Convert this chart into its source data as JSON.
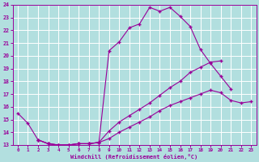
{
  "xlabel": "Windchill (Refroidissement éolien,°C)",
  "bg_color": "#b2dfdf",
  "line_color": "#990099",
  "grid_color": "#ffffff",
  "xlim": [
    -0.5,
    23.5
  ],
  "ylim": [
    13,
    24
  ],
  "xticks": [
    0,
    1,
    2,
    3,
    4,
    5,
    6,
    7,
    8,
    9,
    10,
    11,
    12,
    13,
    14,
    15,
    16,
    17,
    18,
    19,
    20,
    21,
    22,
    23
  ],
  "yticks": [
    13,
    14,
    15,
    16,
    17,
    18,
    19,
    20,
    21,
    22,
    23,
    24
  ],
  "s1x": [
    0,
    1,
    2,
    3,
    4,
    5,
    6,
    7,
    8,
    9,
    10,
    11,
    12,
    13,
    14,
    15,
    16,
    17,
    18,
    19,
    20,
    21
  ],
  "s1y": [
    15.5,
    14.7,
    13.4,
    13.1,
    13.0,
    13.0,
    13.1,
    13.1,
    13.2,
    20.4,
    21.1,
    22.2,
    22.5,
    23.8,
    23.5,
    23.8,
    23.1,
    22.3,
    20.5,
    19.4,
    18.4,
    17.4
  ],
  "s2x": [
    2,
    3,
    4,
    5,
    6,
    7,
    8,
    9,
    10,
    11,
    12,
    13,
    14,
    15,
    16,
    17,
    18,
    19,
    20
  ],
  "s2y": [
    13.4,
    13.1,
    13.0,
    13.0,
    13.1,
    13.1,
    13.2,
    14.1,
    14.8,
    15.3,
    15.8,
    16.3,
    16.9,
    17.5,
    18.0,
    18.7,
    19.1,
    19.5,
    19.6
  ],
  "s3x": [
    2,
    3,
    4,
    5,
    6,
    7,
    8,
    9,
    10,
    11,
    12,
    13,
    14,
    15,
    16,
    17,
    18,
    19,
    20,
    21,
    22,
    23
  ],
  "s3y": [
    13.4,
    13.1,
    13.0,
    13.0,
    13.1,
    13.1,
    13.2,
    13.5,
    14.0,
    14.4,
    14.8,
    15.2,
    15.7,
    16.1,
    16.4,
    16.7,
    17.0,
    17.3,
    17.1,
    16.5,
    16.3,
    16.4
  ]
}
